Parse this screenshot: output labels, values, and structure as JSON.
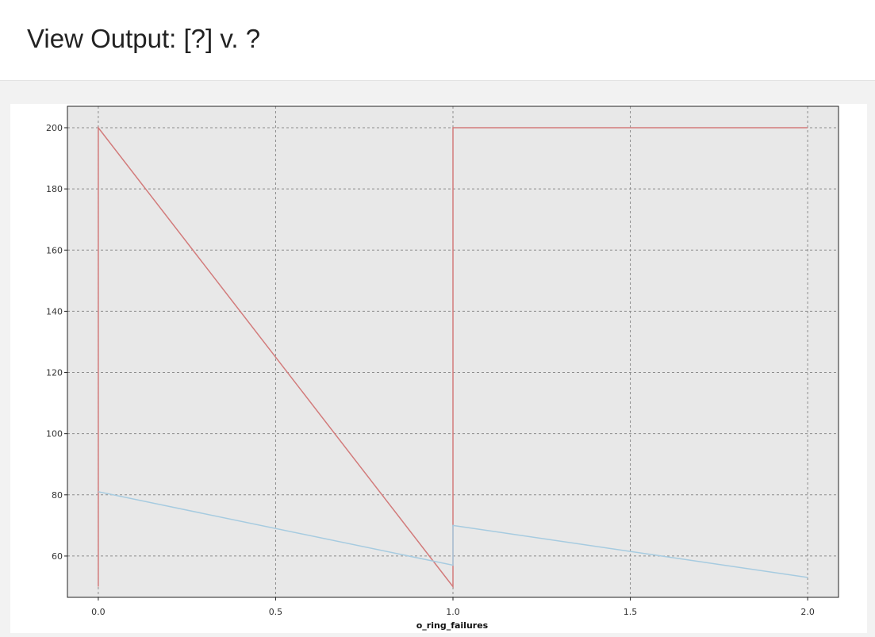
{
  "page": {
    "title": "View Output: [?] v. ?"
  },
  "chart_data": {
    "type": "line",
    "title": "",
    "xlabel": "o_ring_failures",
    "ylabel": "",
    "xlim": [
      -0.087,
      2.087
    ],
    "ylim": [
      46.5,
      207
    ],
    "x_ticks": [
      0.0,
      0.5,
      1.0,
      1.5,
      2.0
    ],
    "x_tick_labels": [
      "0.0",
      "0.5",
      "1.0",
      "1.5",
      "2.0"
    ],
    "y_ticks": [
      60,
      80,
      100,
      120,
      140,
      160,
      180,
      200
    ],
    "y_tick_labels": [
      "60",
      "80",
      "100",
      "120",
      "140",
      "160",
      "180",
      "200"
    ],
    "grid": true,
    "legend": "none",
    "series": [
      {
        "color": "#d27b7b",
        "points": [
          [
            0.0,
            50
          ],
          [
            0.0,
            200
          ],
          [
            1.0,
            50
          ],
          [
            1.0,
            200
          ],
          [
            2.0,
            200
          ]
        ]
      },
      {
        "color": "#a6cbe0",
        "points": [
          [
            0.0,
            81
          ],
          [
            1.0,
            57
          ],
          [
            1.0,
            70
          ],
          [
            2.0,
            53
          ]
        ]
      }
    ]
  }
}
